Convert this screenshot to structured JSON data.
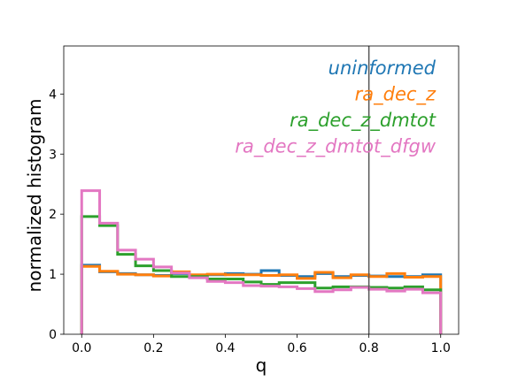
{
  "chart_data": {
    "type": "line",
    "xlabel": "q",
    "ylabel": "normalized histogram",
    "xlim": [
      -0.05,
      1.05
    ],
    "ylim": [
      0,
      4.8
    ],
    "xticks": [
      0.0,
      0.2,
      0.4,
      0.6,
      0.8,
      1.0
    ],
    "xtick_labels": [
      "0.0",
      "0.2",
      "0.4",
      "0.6",
      "0.8",
      "1.0"
    ],
    "yticks": [
      0,
      1,
      2,
      3,
      4
    ],
    "ytick_labels": [
      "0",
      "1",
      "2",
      "3",
      "4"
    ],
    "bin_edges": [
      0.0,
      0.05,
      0.1,
      0.15,
      0.2,
      0.25,
      0.3,
      0.35,
      0.4,
      0.45,
      0.5,
      0.55,
      0.6,
      0.65,
      0.7,
      0.75,
      0.8,
      0.85,
      0.9,
      0.95,
      1.0
    ],
    "vline_x": 0.8,
    "legend_position": "upper right",
    "grid": false,
    "series": [
      {
        "name": "uninformed",
        "color": "#1f77b4",
        "values": [
          1.15,
          1.04,
          1.01,
          0.99,
          0.98,
          1.01,
          0.98,
          0.99,
          1.01,
          1.0,
          1.06,
          0.98,
          0.96,
          1.01,
          0.96,
          0.98,
          0.97,
          0.96,
          0.96,
          0.99
        ]
      },
      {
        "name": "ra_dec_z",
        "color": "#ff7f0e",
        "values": [
          1.13,
          1.05,
          1.0,
          0.99,
          0.97,
          1.04,
          0.99,
          1.0,
          0.99,
          0.99,
          0.98,
          0.99,
          0.93,
          1.03,
          0.94,
          0.99,
          0.96,
          1.01,
          0.95,
          0.96
        ]
      },
      {
        "name": "ra_dec_z_dmtot",
        "color": "#2ca02c",
        "values": [
          1.96,
          1.81,
          1.33,
          1.14,
          1.06,
          0.96,
          0.96,
          0.92,
          0.92,
          0.87,
          0.83,
          0.86,
          0.86,
          0.77,
          0.79,
          0.79,
          0.78,
          0.77,
          0.79,
          0.74
        ]
      },
      {
        "name": "ra_dec_z_dmtot_dfgw",
        "color": "#e377c2",
        "values": [
          2.39,
          1.85,
          1.4,
          1.25,
          1.12,
          1.02,
          0.94,
          0.88,
          0.86,
          0.81,
          0.8,
          0.79,
          0.76,
          0.71,
          0.74,
          0.78,
          0.75,
          0.72,
          0.75,
          0.69
        ]
      }
    ]
  }
}
